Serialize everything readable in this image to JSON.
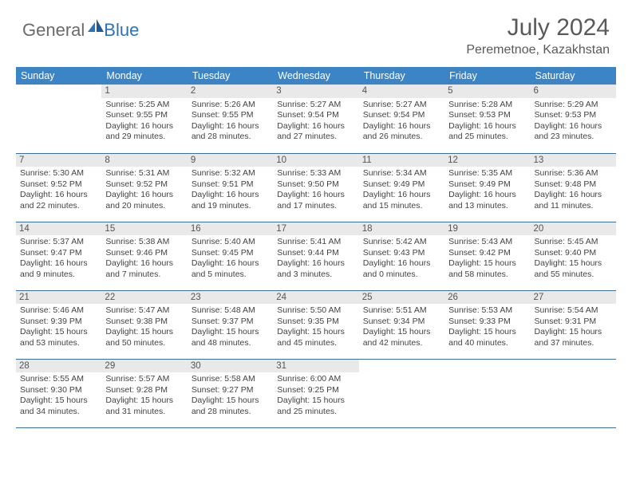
{
  "brand": {
    "part1": "General",
    "part2": "Blue"
  },
  "title": "July 2024",
  "location": "Peremetnoe, Kazakhstan",
  "colors": {
    "header_bg": "#3b85c6",
    "header_text": "#ffffff",
    "daynum_bg": "#e9e9e9",
    "body_text": "#434343",
    "rule": "#3b6fa0",
    "logo_gray": "#6a6a6a",
    "logo_blue": "#2d72b8"
  },
  "weekdays": [
    "Sunday",
    "Monday",
    "Tuesday",
    "Wednesday",
    "Thursday",
    "Friday",
    "Saturday"
  ],
  "weeks": [
    [
      {
        "n": "",
        "sr": "",
        "ss": "",
        "dl": ""
      },
      {
        "n": "1",
        "sr": "Sunrise: 5:25 AM",
        "ss": "Sunset: 9:55 PM",
        "dl": "Daylight: 16 hours and 29 minutes."
      },
      {
        "n": "2",
        "sr": "Sunrise: 5:26 AM",
        "ss": "Sunset: 9:55 PM",
        "dl": "Daylight: 16 hours and 28 minutes."
      },
      {
        "n": "3",
        "sr": "Sunrise: 5:27 AM",
        "ss": "Sunset: 9:54 PM",
        "dl": "Daylight: 16 hours and 27 minutes."
      },
      {
        "n": "4",
        "sr": "Sunrise: 5:27 AM",
        "ss": "Sunset: 9:54 PM",
        "dl": "Daylight: 16 hours and 26 minutes."
      },
      {
        "n": "5",
        "sr": "Sunrise: 5:28 AM",
        "ss": "Sunset: 9:53 PM",
        "dl": "Daylight: 16 hours and 25 minutes."
      },
      {
        "n": "6",
        "sr": "Sunrise: 5:29 AM",
        "ss": "Sunset: 9:53 PM",
        "dl": "Daylight: 16 hours and 23 minutes."
      }
    ],
    [
      {
        "n": "7",
        "sr": "Sunrise: 5:30 AM",
        "ss": "Sunset: 9:52 PM",
        "dl": "Daylight: 16 hours and 22 minutes."
      },
      {
        "n": "8",
        "sr": "Sunrise: 5:31 AM",
        "ss": "Sunset: 9:52 PM",
        "dl": "Daylight: 16 hours and 20 minutes."
      },
      {
        "n": "9",
        "sr": "Sunrise: 5:32 AM",
        "ss": "Sunset: 9:51 PM",
        "dl": "Daylight: 16 hours and 19 minutes."
      },
      {
        "n": "10",
        "sr": "Sunrise: 5:33 AM",
        "ss": "Sunset: 9:50 PM",
        "dl": "Daylight: 16 hours and 17 minutes."
      },
      {
        "n": "11",
        "sr": "Sunrise: 5:34 AM",
        "ss": "Sunset: 9:49 PM",
        "dl": "Daylight: 16 hours and 15 minutes."
      },
      {
        "n": "12",
        "sr": "Sunrise: 5:35 AM",
        "ss": "Sunset: 9:49 PM",
        "dl": "Daylight: 16 hours and 13 minutes."
      },
      {
        "n": "13",
        "sr": "Sunrise: 5:36 AM",
        "ss": "Sunset: 9:48 PM",
        "dl": "Daylight: 16 hours and 11 minutes."
      }
    ],
    [
      {
        "n": "14",
        "sr": "Sunrise: 5:37 AM",
        "ss": "Sunset: 9:47 PM",
        "dl": "Daylight: 16 hours and 9 minutes."
      },
      {
        "n": "15",
        "sr": "Sunrise: 5:38 AM",
        "ss": "Sunset: 9:46 PM",
        "dl": "Daylight: 16 hours and 7 minutes."
      },
      {
        "n": "16",
        "sr": "Sunrise: 5:40 AM",
        "ss": "Sunset: 9:45 PM",
        "dl": "Daylight: 16 hours and 5 minutes."
      },
      {
        "n": "17",
        "sr": "Sunrise: 5:41 AM",
        "ss": "Sunset: 9:44 PM",
        "dl": "Daylight: 16 hours and 3 minutes."
      },
      {
        "n": "18",
        "sr": "Sunrise: 5:42 AM",
        "ss": "Sunset: 9:43 PM",
        "dl": "Daylight: 16 hours and 0 minutes."
      },
      {
        "n": "19",
        "sr": "Sunrise: 5:43 AM",
        "ss": "Sunset: 9:42 PM",
        "dl": "Daylight: 15 hours and 58 minutes."
      },
      {
        "n": "20",
        "sr": "Sunrise: 5:45 AM",
        "ss": "Sunset: 9:40 PM",
        "dl": "Daylight: 15 hours and 55 minutes."
      }
    ],
    [
      {
        "n": "21",
        "sr": "Sunrise: 5:46 AM",
        "ss": "Sunset: 9:39 PM",
        "dl": "Daylight: 15 hours and 53 minutes."
      },
      {
        "n": "22",
        "sr": "Sunrise: 5:47 AM",
        "ss": "Sunset: 9:38 PM",
        "dl": "Daylight: 15 hours and 50 minutes."
      },
      {
        "n": "23",
        "sr": "Sunrise: 5:48 AM",
        "ss": "Sunset: 9:37 PM",
        "dl": "Daylight: 15 hours and 48 minutes."
      },
      {
        "n": "24",
        "sr": "Sunrise: 5:50 AM",
        "ss": "Sunset: 9:35 PM",
        "dl": "Daylight: 15 hours and 45 minutes."
      },
      {
        "n": "25",
        "sr": "Sunrise: 5:51 AM",
        "ss": "Sunset: 9:34 PM",
        "dl": "Daylight: 15 hours and 42 minutes."
      },
      {
        "n": "26",
        "sr": "Sunrise: 5:53 AM",
        "ss": "Sunset: 9:33 PM",
        "dl": "Daylight: 15 hours and 40 minutes."
      },
      {
        "n": "27",
        "sr": "Sunrise: 5:54 AM",
        "ss": "Sunset: 9:31 PM",
        "dl": "Daylight: 15 hours and 37 minutes."
      }
    ],
    [
      {
        "n": "28",
        "sr": "Sunrise: 5:55 AM",
        "ss": "Sunset: 9:30 PM",
        "dl": "Daylight: 15 hours and 34 minutes."
      },
      {
        "n": "29",
        "sr": "Sunrise: 5:57 AM",
        "ss": "Sunset: 9:28 PM",
        "dl": "Daylight: 15 hours and 31 minutes."
      },
      {
        "n": "30",
        "sr": "Sunrise: 5:58 AM",
        "ss": "Sunset: 9:27 PM",
        "dl": "Daylight: 15 hours and 28 minutes."
      },
      {
        "n": "31",
        "sr": "Sunrise: 6:00 AM",
        "ss": "Sunset: 9:25 PM",
        "dl": "Daylight: 15 hours and 25 minutes."
      },
      {
        "n": "",
        "sr": "",
        "ss": "",
        "dl": ""
      },
      {
        "n": "",
        "sr": "",
        "ss": "",
        "dl": ""
      },
      {
        "n": "",
        "sr": "",
        "ss": "",
        "dl": ""
      }
    ]
  ]
}
